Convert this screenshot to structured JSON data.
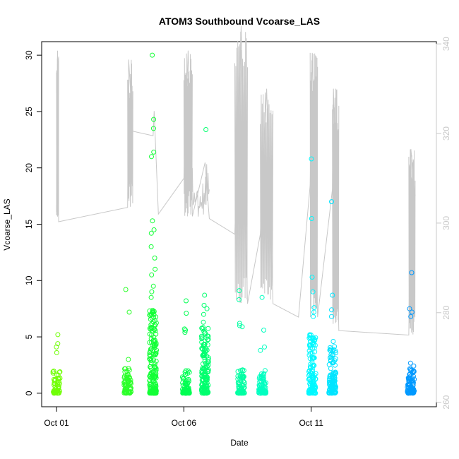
{
  "chart_data": {
    "type": "scatter",
    "title": "ATOM3 Southbound Vcoarse_LAS",
    "xlabel": "Date",
    "ylabel": "Vcoarse_LAS",
    "x_unit": "days",
    "x_range": [
      "2016-09-30T10:00",
      "2016-10-15T22:00"
    ],
    "y_range": [
      -1.2,
      31.2
    ],
    "y_ticks": [
      0,
      5,
      10,
      15,
      20,
      25,
      30
    ],
    "x_ticks": [
      {
        "date": "2016-10-01",
        "label": "Oct 01"
      },
      {
        "date": "2016-10-06",
        "label": "Oct 06"
      },
      {
        "date": "2016-10-11",
        "label": "Oct 11"
      }
    ],
    "secondary_axis": {
      "side": "right",
      "color": "#c8c8c8",
      "range": [
        259,
        340.5
      ],
      "ticks": [
        260,
        280,
        300,
        320,
        340
      ],
      "labels": [
        "260",
        "280",
        "300",
        "320",
        "340"
      ],
      "series_style": "line"
    },
    "color_gradient": [
      "#7fff00",
      "#00ff40",
      "#00ffff",
      "#0080ff"
    ],
    "point_marker": "open circle",
    "clusters": [
      {
        "center": "2016-10-01T00:00",
        "max": 5.2,
        "outliers": [
          5.2,
          4.4,
          4.1,
          3.6
        ]
      },
      {
        "center": "2016-10-03T19:00",
        "max": 9.2,
        "outliers": [
          9.2,
          7.2,
          3.0,
          2.2
        ]
      },
      {
        "center": "2016-10-04T19:00",
        "max": 30.0,
        "outliers": [
          30.0,
          24.3,
          23.5,
          21.4,
          21.0,
          15.3,
          14.5,
          14.2,
          13.0,
          12.0,
          11.0,
          10.5,
          9.5,
          9.0,
          8.5
        ]
      },
      {
        "center": "2016-10-06T02:00",
        "max": 8.2,
        "outliers": [
          8.2,
          7.1,
          5.7,
          5.6,
          5.4
        ]
      },
      {
        "center": "2016-10-06T20:00",
        "max": 23.4,
        "outliers": [
          23.4,
          8.7,
          7.8,
          7.5,
          7.0,
          6.3
        ]
      },
      {
        "center": "2016-10-08T06:00",
        "max": 9.1,
        "outliers": [
          9.1,
          8.3,
          6.2,
          6.0,
          5.9
        ]
      },
      {
        "center": "2016-10-09T02:00",
        "max": 8.5,
        "outliers": [
          8.5,
          5.6,
          4.1,
          3.8
        ]
      },
      {
        "center": "2016-10-11T01:00",
        "max": 20.8,
        "outliers": [
          20.8,
          15.5,
          10.3,
          9.0,
          7.6,
          7.2,
          6.8
        ]
      },
      {
        "center": "2016-10-11T20:00",
        "max": 17.0,
        "outliers": [
          17.0,
          8.7,
          7.4,
          6.8,
          4.6
        ]
      },
      {
        "center": "2016-10-14T22:00",
        "max": 10.7,
        "outliers": [
          10.7,
          7.5,
          7.2,
          6.8
        ]
      }
    ],
    "secondary_line": [
      {
        "x": "2016-10-01T00:00",
        "y": 302.5
      },
      {
        "x": "2016-10-01T01:00",
        "y": 338.5
      },
      {
        "x": "2016-10-01T02:00",
        "y": 300.3
      },
      {
        "x": "2016-10-03T19:00",
        "y": 303.5
      },
      {
        "x": "2016-10-03T20:00",
        "y": 336.5
      },
      {
        "x": "2016-10-04T00:00",
        "y": 320.5
      },
      {
        "x": "2016-10-04T19:00",
        "y": 319.5
      },
      {
        "x": "2016-10-04T20:00",
        "y": 325.0
      },
      {
        "x": "2016-10-05T00:00",
        "y": 302.0
      },
      {
        "x": "2016-10-06T00:00",
        "y": 310.0
      },
      {
        "x": "2016-10-06T04:00",
        "y": 338.5
      },
      {
        "x": "2016-10-06T08:00",
        "y": 301.5
      },
      {
        "x": "2016-10-06T20:00",
        "y": 313.5
      },
      {
        "x": "2016-10-07T00:00",
        "y": 301.0
      },
      {
        "x": "2016-10-08T00:00",
        "y": 297.5
      },
      {
        "x": "2016-10-08T06:00",
        "y": 344.0
      },
      {
        "x": "2016-10-08T12:00",
        "y": 282.0
      },
      {
        "x": "2016-10-09T00:00",
        "y": 297.5
      },
      {
        "x": "2016-10-09T06:00",
        "y": 330.0
      },
      {
        "x": "2016-10-09T12:00",
        "y": 282.0
      },
      {
        "x": "2016-10-10T12:00",
        "y": 279.0
      },
      {
        "x": "2016-10-10T23:00",
        "y": 308.5
      },
      {
        "x": "2016-10-11T01:00",
        "y": 338.0
      },
      {
        "x": "2016-10-11T06:00",
        "y": 279.0
      },
      {
        "x": "2016-10-11T20:00",
        "y": 307.5
      },
      {
        "x": "2016-10-11T21:00",
        "y": 330.0
      },
      {
        "x": "2016-10-12T02:00",
        "y": 276.0
      },
      {
        "x": "2016-10-14T20:00",
        "y": 275.0
      },
      {
        "x": "2016-10-14T22:00",
        "y": 316.5
      },
      {
        "x": "2016-10-15T02:00",
        "y": 306.0
      }
    ]
  }
}
